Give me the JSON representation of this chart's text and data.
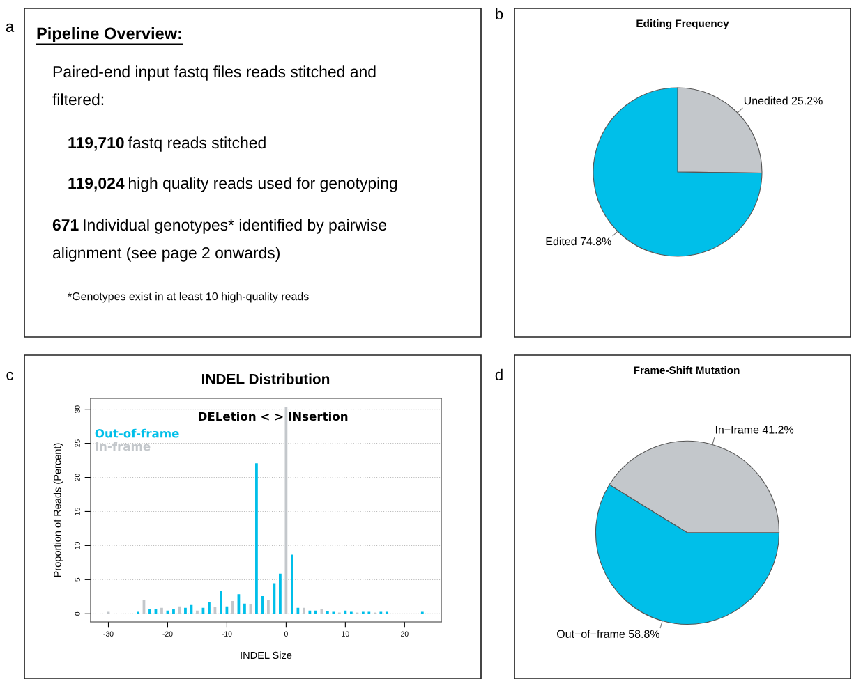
{
  "chart_data": [
    {
      "type": "other",
      "title": "Pipeline Overview:",
      "annotations": [
        "a",
        "Paired-end input fastq files reads stitched and\nfiltered:",
        "119,710 fastq reads stitched",
        "119,024 high quality reads used for genotyping",
        "671 Individual genotypes* identified by pairwise\nalignment (see page 2 onwards)",
        "*Genotypes exist in at least 10 high-quality reads"
      ]
    },
    {
      "type": "pie",
      "title": "Editing Frequency",
      "annotations": [
        "b"
      ],
      "categories": [
        "Unedited",
        "Edited"
      ],
      "values": [
        25.2,
        74.8
      ],
      "value_labels": [
        "25.2%",
        "74.8%"
      ],
      "colors": [
        "#c3c7cb",
        "#00bfe9"
      ]
    },
    {
      "type": "bar",
      "title": "INDEL Distribution",
      "annotations": [
        "c",
        "DELetion < > INsertion"
      ],
      "xlabel": "INDEL Size",
      "ylabel": "Proportion of Reads (Percent)",
      "x": [
        -30,
        -25,
        -24,
        -23,
        -22,
        -21,
        -20,
        -19,
        -18,
        -17,
        -16,
        -15,
        -14,
        -13,
        -12,
        -11,
        -10,
        -9,
        -8,
        -7,
        -6,
        -5,
        -4,
        -3,
        -2,
        -1,
        0,
        1,
        2,
        3,
        4,
        5,
        6,
        7,
        8,
        9,
        10,
        11,
        12,
        13,
        14,
        15,
        16,
        17,
        23
      ],
      "series": [
        {
          "name": "Out-of-frame",
          "color": "#00bfe9",
          "values": [
            null,
            0.2,
            null,
            0.6,
            0.6,
            null,
            0.4,
            0.6,
            null,
            0.8,
            1.2,
            null,
            0.8,
            1.6,
            null,
            3.3,
            1.0,
            null,
            2.8,
            1.4,
            null,
            22.0,
            2.5,
            null,
            4.4,
            5.8,
            null,
            8.6,
            0.8,
            null,
            0.4,
            0.4,
            null,
            0.3,
            0.2,
            null,
            0.4,
            0.2,
            null,
            0.2,
            0.2,
            null,
            0.2,
            0.2,
            0.2
          ]
        },
        {
          "name": "In-frame",
          "color": "#c3c7cb",
          "values": [
            0.2,
            null,
            2.0,
            null,
            null,
            0.8,
            null,
            null,
            1.0,
            null,
            null,
            0.4,
            null,
            null,
            0.9,
            null,
            null,
            1.8,
            null,
            null,
            1.3,
            null,
            null,
            2.0,
            null,
            null,
            30.3,
            null,
            null,
            0.8,
            null,
            null,
            0.6,
            null,
            null,
            0.1,
            null,
            null,
            0.1,
            null,
            null,
            0.1,
            null,
            null,
            null
          ]
        }
      ],
      "xlim": [
        -33,
        26.2
      ],
      "xticks": [
        -30,
        -20,
        -10,
        0,
        10,
        20
      ],
      "ylim": [
        -1.2,
        31.6
      ],
      "yticks": [
        0,
        5,
        10,
        15,
        20,
        25,
        30
      ],
      "grid": "y",
      "legend": "top left"
    },
    {
      "type": "pie",
      "title": "Frame-Shift Mutation",
      "annotations": [
        "d"
      ],
      "categories": [
        "In−frame",
        "Out−of−frame"
      ],
      "values": [
        41.2,
        58.8
      ],
      "value_labels": [
        "41.2%",
        "58.8%"
      ],
      "colors": [
        "#c3c7cb",
        "#00bfe9"
      ]
    }
  ]
}
